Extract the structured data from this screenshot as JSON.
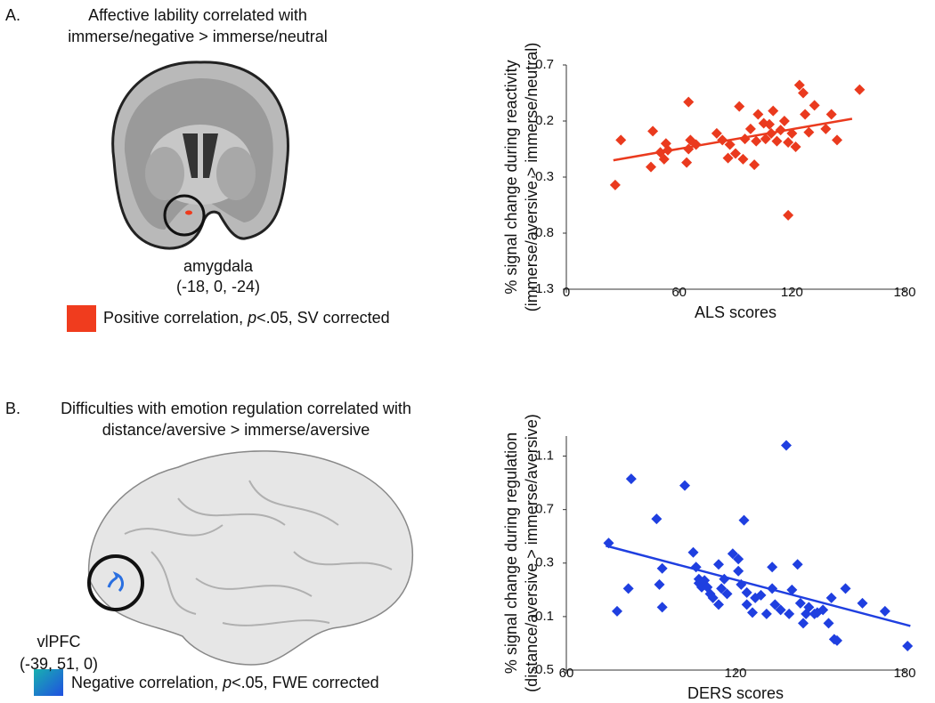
{
  "panels": [
    {
      "label": "A.",
      "title": [
        "Affective lability correlated with",
        "immerse/negative > immerse/neutral"
      ],
      "region": "amygdala",
      "coords": "(-18, 0, -24)",
      "legend": [
        "Positive correlation, ",
        "p",
        "<.05, SV corrected"
      ]
    },
    {
      "label": "B.",
      "title": [
        "Difficulties with emotion regulation correlated with",
        "distance/aversive > immerse/aversive"
      ],
      "region": "vlPFC",
      "coords": "(-39, 51, 0)",
      "legend": [
        "Negative correlation, ",
        "p",
        "<.05, FWE corrected"
      ]
    }
  ],
  "chart_data": [
    {
      "type": "scatter",
      "xlabel": "ALS scores",
      "ylabel": [
        "% signal change during reactivity",
        "(immerse/aversive > immerse/neutral)"
      ],
      "xlim": [
        0,
        180
      ],
      "xticks": [
        0,
        60,
        120,
        180
      ],
      "ylim": [
        -1.3,
        0.7
      ],
      "yticks": [
        -1.3,
        -0.8,
        -0.3,
        0.2,
        0.7
      ],
      "color": "#ea3a1e",
      "x": [
        26,
        29,
        46,
        45,
        50,
        53,
        54,
        52,
        65,
        65,
        66,
        64,
        69,
        80,
        83,
        86,
        87,
        90,
        92,
        94,
        95,
        98,
        100,
        101,
        102,
        105,
        106,
        108,
        109,
        110,
        112,
        114,
        116,
        118,
        118,
        120,
        122,
        124,
        126,
        127,
        129,
        132,
        138,
        141,
        144,
        156
      ],
      "y": [
        -0.37,
        0.03,
        0.11,
        -0.21,
        -0.08,
        0.0,
        -0.06,
        -0.14,
        0.37,
        -0.05,
        0.03,
        -0.17,
        -0.01,
        0.09,
        0.03,
        -0.13,
        -0.01,
        -0.09,
        0.33,
        -0.14,
        0.04,
        0.13,
        -0.19,
        0.02,
        0.26,
        0.18,
        0.04,
        0.17,
        0.09,
        0.29,
        0.02,
        0.12,
        0.2,
        0.01,
        -0.64,
        0.09,
        -0.03,
        0.52,
        0.45,
        0.26,
        0.1,
        0.34,
        0.13,
        0.26,
        0.03,
        0.48
      ],
      "trend": {
        "x": [
          25,
          152
        ],
        "y": [
          -0.15,
          0.22
        ]
      }
    },
    {
      "type": "scatter",
      "xlabel": "DERS scores",
      "ylabel": [
        "% signal change during regulation",
        "(distance/aversive > immerse/aversive)"
      ],
      "xlim": [
        60,
        180
      ],
      "xticks": [
        60,
        120,
        180
      ],
      "ylim": [
        -0.5,
        1.25
      ],
      "yticks": [
        -0.5,
        -0.1,
        0.3,
        0.7,
        1.1
      ],
      "color": "#1f3fe0",
      "x": [
        75,
        83,
        78,
        82,
        92,
        94,
        93,
        94,
        102,
        105,
        106,
        107,
        107,
        108,
        109,
        110,
        111,
        112,
        114,
        114,
        115,
        116,
        117,
        119,
        121,
        121,
        122,
        123,
        124,
        124,
        126,
        127,
        129,
        131,
        133,
        133,
        134,
        136,
        138,
        139,
        140,
        142,
        143,
        144,
        145,
        146,
        148,
        149,
        151,
        153,
        154,
        155,
        156,
        159,
        165,
        173,
        181
      ],
      "y": [
        0.45,
        0.93,
        -0.06,
        0.11,
        0.63,
        0.26,
        0.14,
        -0.03,
        0.88,
        0.38,
        0.27,
        0.18,
        0.15,
        0.12,
        0.17,
        0.12,
        0.07,
        0.04,
        -0.01,
        0.29,
        0.11,
        0.18,
        0.07,
        0.37,
        0.33,
        0.24,
        0.14,
        0.62,
        0.08,
        -0.01,
        -0.07,
        0.04,
        0.06,
        -0.08,
        0.27,
        0.11,
        -0.01,
        -0.05,
        1.18,
        -0.08,
        0.1,
        0.29,
        0.0,
        -0.15,
        -0.08,
        -0.03,
        -0.08,
        -0.07,
        -0.05,
        -0.15,
        0.04,
        -0.27,
        -0.28,
        0.11,
        0.0,
        -0.06,
        -0.32
      ],
      "trend": {
        "x": [
          74,
          182
        ],
        "y": [
          0.43,
          -0.17
        ]
      }
    }
  ]
}
